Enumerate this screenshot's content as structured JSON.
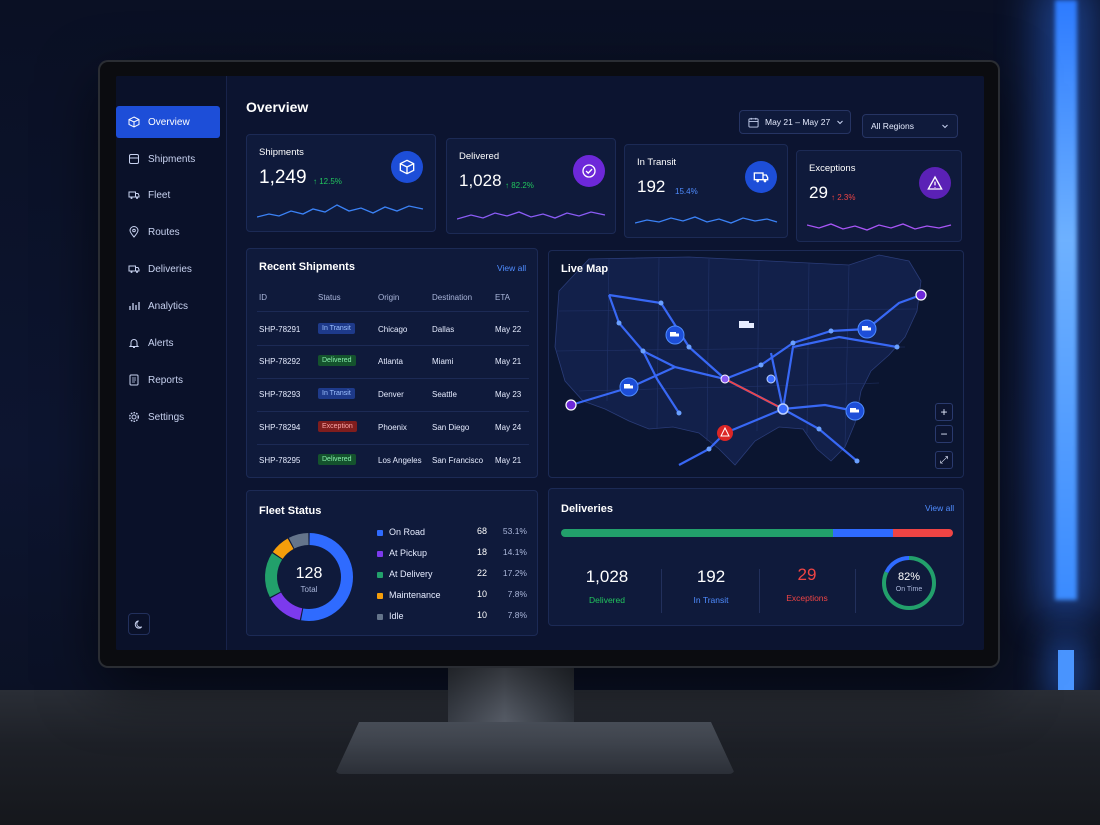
{
  "sidebar": {
    "items": [
      {
        "label": "Overview",
        "icon": "cube-icon"
      },
      {
        "label": "Shipments",
        "icon": "package-icon"
      },
      {
        "label": "Fleet",
        "icon": "truck-icon"
      },
      {
        "label": "Routes",
        "icon": "map-pin-icon"
      },
      {
        "label": "Deliveries",
        "icon": "delivery-truck-icon"
      },
      {
        "label": "Analytics",
        "icon": "bar-chart-icon"
      },
      {
        "label": "Alerts",
        "icon": "bell-icon"
      },
      {
        "label": "Reports",
        "icon": "document-icon"
      },
      {
        "label": "Settings",
        "icon": "gear-icon"
      }
    ],
    "active": "Overview"
  },
  "header": {
    "title": "Overview",
    "date_range": "May 21 – May 27",
    "region": "All Regions"
  },
  "kpis": [
    {
      "label": "Shipments",
      "value": "1,249",
      "change": "12.5%",
      "direction": "up",
      "change_color": "#22c55e",
      "icon": "cube-icon",
      "icon_bg": "#1d4ed8"
    },
    {
      "label": "Delivered",
      "value": "1,028",
      "change": "82.2%",
      "direction": "up",
      "change_color": "#22c55e",
      "icon": "check-circle-icon",
      "icon_bg": "#6d28d9"
    },
    {
      "label": "In Transit",
      "value": "192",
      "change": "15.4%",
      "direction": "none",
      "change_color": "#4f8cff",
      "icon": "truck-icon",
      "icon_bg": "#1d4ed8"
    },
    {
      "label": "Exceptions",
      "value": "29",
      "change": "2.3%",
      "direction": "up",
      "change_color": "#ef4444",
      "icon": "warning-icon",
      "icon_bg": "#5b21b6"
    }
  ],
  "recent_shipments": {
    "title": "Recent Shipments",
    "view_all": "View all",
    "columns": [
      "ID",
      "Status",
      "Origin",
      "Destination",
      "ETA"
    ],
    "rows": [
      {
        "id": "SHP-78291",
        "status": "In Transit",
        "origin": "Chicago",
        "destination": "Dallas",
        "eta": "May 22"
      },
      {
        "id": "SHP-78292",
        "status": "Delivered",
        "origin": "Atlanta",
        "destination": "Miami",
        "eta": "May 21"
      },
      {
        "id": "SHP-78293",
        "status": "In Transit",
        "origin": "Denver",
        "destination": "Seattle",
        "eta": "May 23"
      },
      {
        "id": "SHP-78294",
        "status": "Exception",
        "origin": "Phoenix",
        "destination": "San Diego",
        "eta": "May 24"
      },
      {
        "id": "SHP-78295",
        "status": "Delivered",
        "origin": "Los Angeles",
        "destination": "San Francisco",
        "eta": "May 21"
      }
    ],
    "status_colors": {
      "In Transit": {
        "bg": "#1e3a8a",
        "fg": "#9cc0ff"
      },
      "Delivered": {
        "bg": "#14532d",
        "fg": "#86efac"
      },
      "Exception": {
        "bg": "#7f1d1d",
        "fg": "#fca5a5"
      }
    }
  },
  "live_map": {
    "title": "Live Map",
    "controls": {
      "zoom_in": "+",
      "zoom_out": "−",
      "fullscreen": "⤢"
    }
  },
  "fleet_status": {
    "title": "Fleet Status",
    "total": "128",
    "total_label": "Total",
    "items": [
      {
        "label": "On Road",
        "count": "68",
        "pct": "53.1%",
        "color": "#2f6bff"
      },
      {
        "label": "At Pickup",
        "count": "18",
        "pct": "14.1%",
        "color": "#7c3aed"
      },
      {
        "label": "At Delivery",
        "count": "22",
        "pct": "17.2%",
        "color": "#22a06b"
      },
      {
        "label": "Maintenance",
        "count": "10",
        "pct": "7.8%",
        "color": "#f59e0b"
      },
      {
        "label": "Idle",
        "count": "10",
        "pct": "7.8%",
        "color": "#64748b"
      }
    ]
  },
  "deliveries": {
    "title": "Deliveries",
    "view_all": "View all",
    "bar": [
      {
        "label": "Delivered",
        "value": 1028,
        "color": "#22a06b"
      },
      {
        "label": "In Transit",
        "value": 192,
        "color": "#2f6bff"
      },
      {
        "label": "Exceptions",
        "value": 29,
        "color": "#ef4444"
      }
    ],
    "stats": [
      {
        "value": "1,028",
        "label": "Delivered",
        "label_color": "#22c55e"
      },
      {
        "value": "192",
        "label": "In Transit",
        "label_color": "#4f8cff"
      },
      {
        "value": "29",
        "label": "Exceptions",
        "label_color": "#ef4444",
        "value_color": "#ef4444"
      }
    ],
    "on_time_pct": "82%",
    "on_time_label": "On Time",
    "on_time_fraction": 0.82
  }
}
